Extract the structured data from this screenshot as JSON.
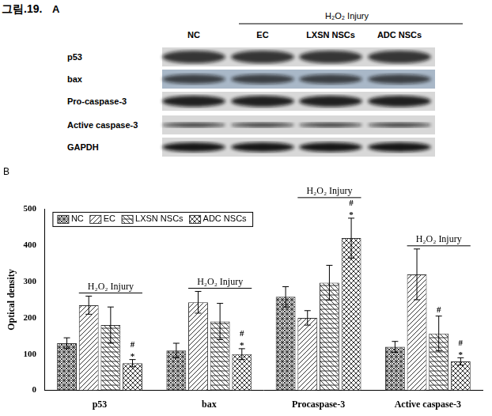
{
  "figure": {
    "label": "그림.19.",
    "panel": "A",
    "blot": {
      "treatment": "H₂O₂ Injury",
      "columns": [
        "NC",
        "EC",
        "LXSN NSCs",
        "ADC NSCs"
      ],
      "rows": [
        "p53",
        "bax",
        "Pro-caspase-3",
        "Active caspase-3",
        "GAPDH"
      ]
    }
  },
  "chart_data": {
    "type": "bar",
    "title": "B",
    "y_label": "Optical density",
    "categories": [
      "p53",
      "bax",
      "Procaspase-3",
      "Active caspase-3"
    ],
    "annotation": "H₂O₂ Injury",
    "series": [
      {
        "name": "NC",
        "color": "#333333",
        "values": [
          130,
          110,
          258,
          120
        ],
        "errors": [
          15,
          20,
          28,
          15
        ],
        "significance": [
          [],
          [],
          [],
          []
        ]
      },
      {
        "name": "EC",
        "color": "#333333",
        "values": [
          235,
          243,
          200,
          320
        ],
        "errors": [
          25,
          30,
          20,
          70
        ],
        "significance": [
          [],
          [],
          [],
          []
        ]
      },
      {
        "name": "LXSN NSCs",
        "color": "#333333",
        "values": [
          180,
          190,
          297,
          157
        ],
        "errors": [
          50,
          50,
          48,
          48
        ],
        "significance": [
          [],
          [],
          [],
          [
            "#"
          ]
        ]
      },
      {
        "name": "ADC NSCs",
        "color": "#333333",
        "values": [
          75,
          100,
          420,
          80
        ],
        "errors": [
          10,
          15,
          55,
          10
        ],
        "significance": [
          [
            "#",
            "*"
          ],
          [
            "#",
            "*"
          ],
          [
            "#",
            "*"
          ],
          [
            "#",
            "*"
          ]
        ]
      }
    ],
    "ylim": [
      0,
      500
    ],
    "yticks": [
      0,
      100,
      200,
      300,
      400,
      500
    ],
    "grid": false,
    "legend": "upper left"
  }
}
